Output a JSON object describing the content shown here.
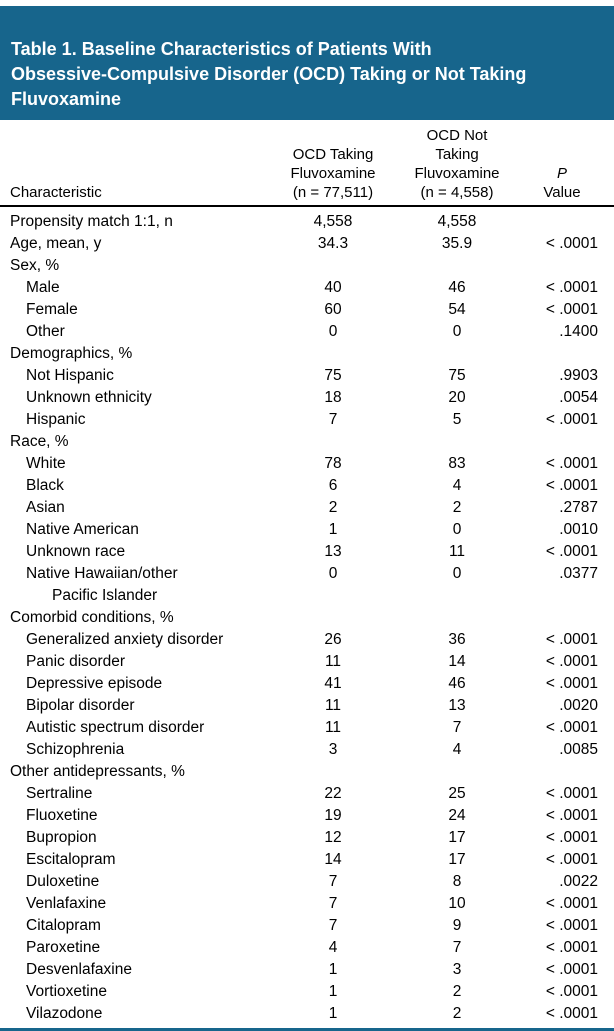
{
  "title": "Table 1. Baseline Characteristics of Patients With\nObsessive-Compulsive Disorder (OCD) Taking or Not Taking\nFluvoxamine",
  "colors": {
    "header_bg": "#17658c",
    "rule": "#000000",
    "text": "#000000",
    "title_text": "#ffffff"
  },
  "columns": {
    "characteristic": "Characteristic",
    "taking": "OCD Taking\nFluvoxamine\n(n = 77,511)",
    "not_taking": "OCD Not\nTaking\nFluvoxamine\n(n = 4,558)",
    "p_symbol": "P",
    "p_value_label": "Value"
  },
  "rows": [
    {
      "label": "Propensity match 1:1, n",
      "indent": 0,
      "v1": "4,558",
      "v2": "4,558",
      "p": ""
    },
    {
      "label": "Age, mean, y",
      "indent": 0,
      "v1": "34.3",
      "v2": "35.9",
      "p": "< .0001"
    },
    {
      "label": "Sex, %",
      "indent": 0,
      "v1": "",
      "v2": "",
      "p": ""
    },
    {
      "label": "Male",
      "indent": 1,
      "v1": "40",
      "v2": "46",
      "p": "< .0001"
    },
    {
      "label": "Female",
      "indent": 1,
      "v1": "60",
      "v2": "54",
      "p": "< .0001"
    },
    {
      "label": "Other",
      "indent": 1,
      "v1": "0",
      "v2": "0",
      "p": ".1400"
    },
    {
      "label": "Demographics, %",
      "indent": 0,
      "v1": "",
      "v2": "",
      "p": ""
    },
    {
      "label": "Not Hispanic",
      "indent": 1,
      "v1": "75",
      "v2": "75",
      "p": ".9903"
    },
    {
      "label": "Unknown ethnicity",
      "indent": 1,
      "v1": "18",
      "v2": "20",
      "p": ".0054"
    },
    {
      "label": "Hispanic",
      "indent": 1,
      "v1": "7",
      "v2": "5",
      "p": "< .0001"
    },
    {
      "label": "Race, %",
      "indent": 0,
      "v1": "",
      "v2": "",
      "p": ""
    },
    {
      "label": "White",
      "indent": 1,
      "v1": "78",
      "v2": "83",
      "p": "< .0001"
    },
    {
      "label": "Black",
      "indent": 1,
      "v1": "6",
      "v2": "4",
      "p": "< .0001"
    },
    {
      "label": "Asian",
      "indent": 1,
      "v1": "2",
      "v2": "2",
      "p": ".2787"
    },
    {
      "label": "Native American",
      "indent": 1,
      "v1": "1",
      "v2": "0",
      "p": ".0010"
    },
    {
      "label": "Unknown race",
      "indent": 1,
      "v1": "13",
      "v2": "11",
      "p": "< .0001"
    },
    {
      "label": "Native Hawaiian/other",
      "label2": "Pacific Islander",
      "indent": 1,
      "v1": "0",
      "v2": "0",
      "p": ".0377"
    },
    {
      "label": "Comorbid conditions, %",
      "indent": 0,
      "v1": "",
      "v2": "",
      "p": ""
    },
    {
      "label": "Generalized anxiety disorder",
      "indent": 1,
      "v1": "26",
      "v2": "36",
      "p": "< .0001"
    },
    {
      "label": "Panic disorder",
      "indent": 1,
      "v1": "11",
      "v2": "14",
      "p": "< .0001"
    },
    {
      "label": "Depressive episode",
      "indent": 1,
      "v1": "41",
      "v2": "46",
      "p": "< .0001"
    },
    {
      "label": "Bipolar disorder",
      "indent": 1,
      "v1": "11",
      "v2": "13",
      "p": ".0020"
    },
    {
      "label": "Autistic spectrum disorder",
      "indent": 1,
      "v1": "11",
      "v2": "7",
      "p": "< .0001"
    },
    {
      "label": "Schizophrenia",
      "indent": 1,
      "v1": "3",
      "v2": "4",
      "p": ".0085"
    },
    {
      "label": "Other antidepressants, %",
      "indent": 0,
      "v1": "",
      "v2": "",
      "p": ""
    },
    {
      "label": "Sertraline",
      "indent": 1,
      "v1": "22",
      "v2": "25",
      "p": "< .0001"
    },
    {
      "label": "Fluoxetine",
      "indent": 1,
      "v1": "19",
      "v2": "24",
      "p": "< .0001"
    },
    {
      "label": "Bupropion",
      "indent": 1,
      "v1": "12",
      "v2": "17",
      "p": "< .0001"
    },
    {
      "label": "Escitalopram",
      "indent": 1,
      "v1": "14",
      "v2": "17",
      "p": "< .0001"
    },
    {
      "label": "Duloxetine",
      "indent": 1,
      "v1": "7",
      "v2": "8",
      "p": ".0022"
    },
    {
      "label": "Venlafaxine",
      "indent": 1,
      "v1": "7",
      "v2": "10",
      "p": "< .0001"
    },
    {
      "label": "Citalopram",
      "indent": 1,
      "v1": "7",
      "v2": "9",
      "p": "< .0001"
    },
    {
      "label": "Paroxetine",
      "indent": 1,
      "v1": "4",
      "v2": "7",
      "p": "< .0001"
    },
    {
      "label": "Desvenlafaxine",
      "indent": 1,
      "v1": "1",
      "v2": "3",
      "p": "< .0001"
    },
    {
      "label": "Vortioxetine",
      "indent": 1,
      "v1": "1",
      "v2": "2",
      "p": "< .0001"
    },
    {
      "label": "Vilazodone",
      "indent": 1,
      "v1": "1",
      "v2": "2",
      "p": "< .0001"
    }
  ]
}
